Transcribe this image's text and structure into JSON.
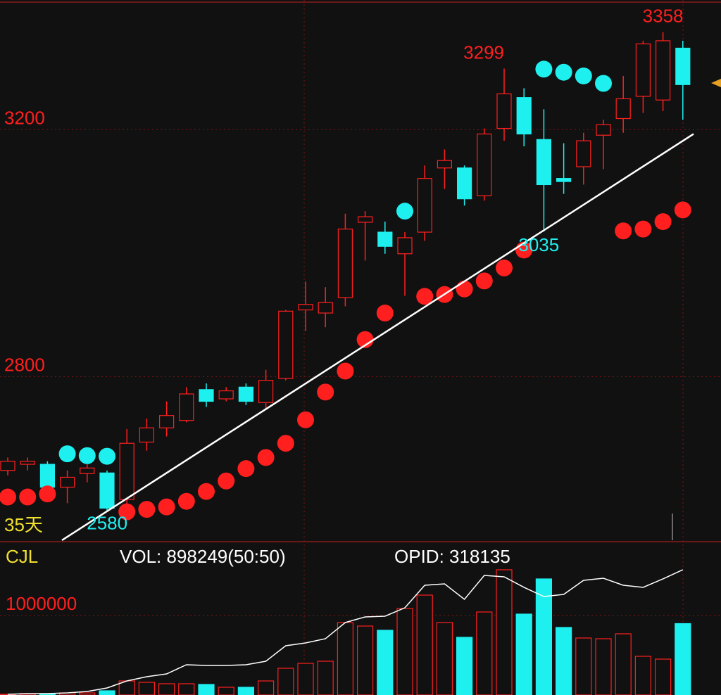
{
  "chart_data": [
    {
      "type": "candlestick",
      "open": [
        2648,
        2658,
        2658,
        2621,
        2643,
        2644,
        2601,
        2694,
        2717,
        2729,
        2779,
        2764,
        2783,
        2758,
        2797,
        2908,
        2903,
        2928,
        3050,
        3034,
        2999,
        3034,
        3138,
        3138,
        3093,
        3202,
        3252,
        3184,
        3121,
        3140,
        3191,
        3218,
        3254,
        3248,
        3332
      ],
      "high": [
        2669,
        2669,
        2663,
        2648,
        2658,
        2648,
        2715,
        2732,
        2760,
        2783,
        2789,
        2783,
        2789,
        2811,
        2908,
        2954,
        2945,
        3064,
        3068,
        3051,
        3034,
        3142,
        3168,
        3142,
        3202,
        3299,
        3267,
        3233,
        3178,
        3195,
        3216,
        3287,
        3344,
        3358,
        3344
      ],
      "low": [
        2640,
        2648,
        2618,
        2595,
        2629,
        2583,
        2580,
        2680,
        2703,
        2726,
        2751,
        2760,
        2754,
        2746,
        2794,
        2874,
        2880,
        2914,
        2988,
        2999,
        2931,
        3020,
        3104,
        3077,
        3085,
        3182,
        3173,
        3035,
        3096,
        3111,
        3136,
        3195,
        3227,
        3230,
        3216
      ],
      "close": [
        2663,
        2663,
        2621,
        2637,
        2652,
        2587,
        2692,
        2717,
        2737,
        2772,
        2760,
        2777,
        2760,
        2794,
        2906,
        2917,
        2920,
        3039,
        3059,
        3011,
        3025,
        3121,
        3150,
        3088,
        3193,
        3258,
        3193,
        3111,
        3116,
        3182,
        3208,
        3250,
        3339,
        3344,
        3273
      ],
      "sar": [
        2605,
        2605,
        2610,
        2675,
        2672,
        2671,
        2581,
        2585,
        2589,
        2598,
        2614,
        2631,
        2651,
        2669,
        2692,
        2730,
        2775,
        2809,
        2860,
        2903,
        3068,
        2930,
        2933,
        2942,
        2955,
        2976,
        3005,
        3298,
        3293,
        3287,
        3275,
        3036,
        3039,
        3051,
        3070
      ],
      "trendline": {
        "x": [
          2.73,
          34.54
        ],
        "values": [
          2535,
          3193
        ]
      },
      "ylim": [
        2535,
        3410
      ],
      "yticks": [
        2800,
        3200
      ],
      "grid": true,
      "period_label": "35天",
      "up_color": "#ff1f1f",
      "down_color": "#1ef0f0",
      "trend_color": "#ffffff"
    },
    {
      "type": "bar",
      "title": "CJL",
      "series": [
        {
          "name": "VOL: 898249(50:50)",
          "values": [
            8850,
            17700,
            8850,
            26500,
            26500,
            53100,
            177000,
            159300,
            141600,
            141600,
            132700,
            97300,
            97300,
            177000,
            336300,
            398200,
            424800,
            911500,
            867300,
            814200,
            1088500,
            1256600,
            911500,
            725700,
            1044200,
            1575200,
            1017700,
            1460200,
            849600,
            716800,
            707900,
            769900,
            486700,
            451300,
            898249
          ]
        },
        {
          "name": "OPID: 318135",
          "color": "#ffffff",
          "axis": "y2",
          "values": [
            1800,
            3600,
            3600,
            5400,
            8900,
            17900,
            35700,
            46500,
            53600,
            76900,
            75100,
            75100,
            76900,
            85800,
            125100,
            132300,
            143000,
            184100,
            198400,
            200200,
            221600,
            278800,
            282400,
            243100,
            303800,
            300300,
            273500,
            250200,
            255600,
            291300,
            296700,
            278800,
            273500,
            294900,
            318135
          ]
        }
      ],
      "ylim": [
        0,
        1929000
      ],
      "yticks": [
        1000000
      ],
      "y2lim": [
        0,
        389600
      ],
      "grid": true
    }
  ]
}
